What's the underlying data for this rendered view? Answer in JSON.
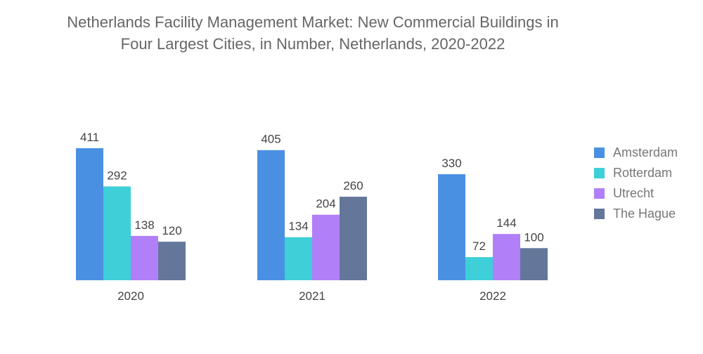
{
  "chart_data": {
    "type": "bar",
    "title_lines": [
      "Netherlands Facility Management Market: New Commercial Buildings in",
      "Four Largest Cities, in Number, Netherlands, 2020-2022"
    ],
    "categories": [
      "2020",
      "2021",
      "2022"
    ],
    "series": [
      {
        "name": "Amsterdam",
        "color": "#4a90e2",
        "values": [
          411,
          405,
          330
        ]
      },
      {
        "name": "Rotterdam",
        "color": "#3ecfd8",
        "values": [
          292,
          134,
          72
        ]
      },
      {
        "name": "Utrecht",
        "color": "#b17ff7",
        "values": [
          138,
          204,
          144
        ]
      },
      {
        "name": "The Hague",
        "color": "#64779b",
        "values": [
          120,
          260,
          100
        ]
      }
    ],
    "xlabel": "",
    "ylabel": "",
    "ylim": [
      0,
      411
    ],
    "legend_position": "right",
    "grid": false
  }
}
